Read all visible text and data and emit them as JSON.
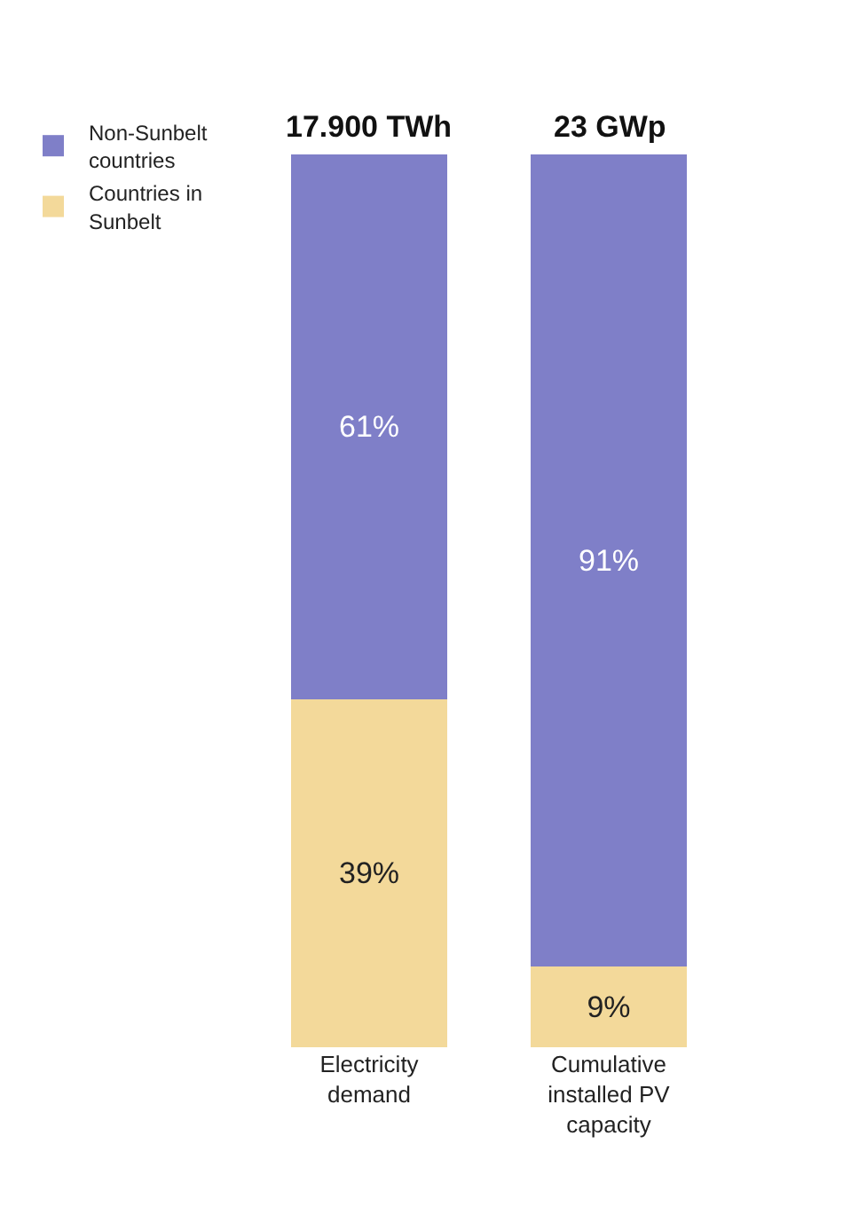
{
  "chart_data": {
    "type": "bar",
    "stacked": true,
    "categories": [
      "Electricity demand",
      "Cumulative installed PV capacity"
    ],
    "series": [
      {
        "name": "Countries in Sunbelt",
        "color": "#f3d99a",
        "values": [
          39,
          9
        ],
        "value_labels": [
          "39%",
          "9%"
        ]
      },
      {
        "name": "Non-Sunbelt countries",
        "color": "#7f7fc8",
        "values": [
          61,
          91
        ],
        "value_labels": [
          "61%",
          "91%"
        ]
      }
    ],
    "annotations": [
      "17.900 TWh",
      "23 GWp"
    ],
    "legend": "top left"
  }
}
